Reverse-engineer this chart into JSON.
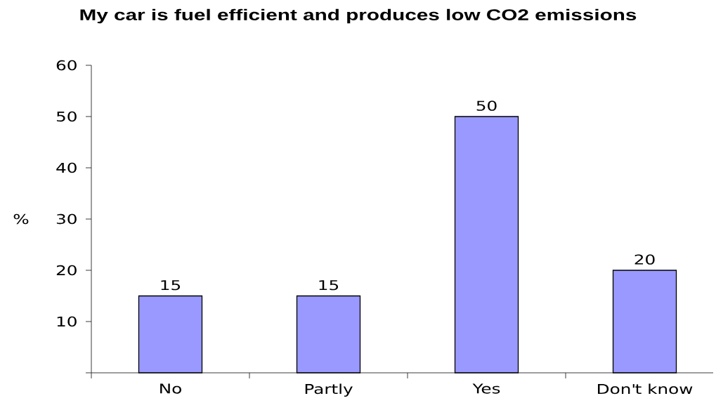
{
  "chart_data": {
    "type": "bar",
    "title": "My car is fuel efficient and produces low CO2 emissions",
    "ylabel": "%",
    "categories": [
      "No",
      "Partly",
      "Yes",
      "Don't know"
    ],
    "values": [
      15,
      15,
      50,
      20
    ],
    "color": "#9999ff",
    "ylim": [
      0,
      60
    ],
    "yticks": [
      {
        "value": 0,
        "label": null
      },
      10,
      20,
      30,
      40,
      50,
      60
    ],
    "data_labels": true
  }
}
